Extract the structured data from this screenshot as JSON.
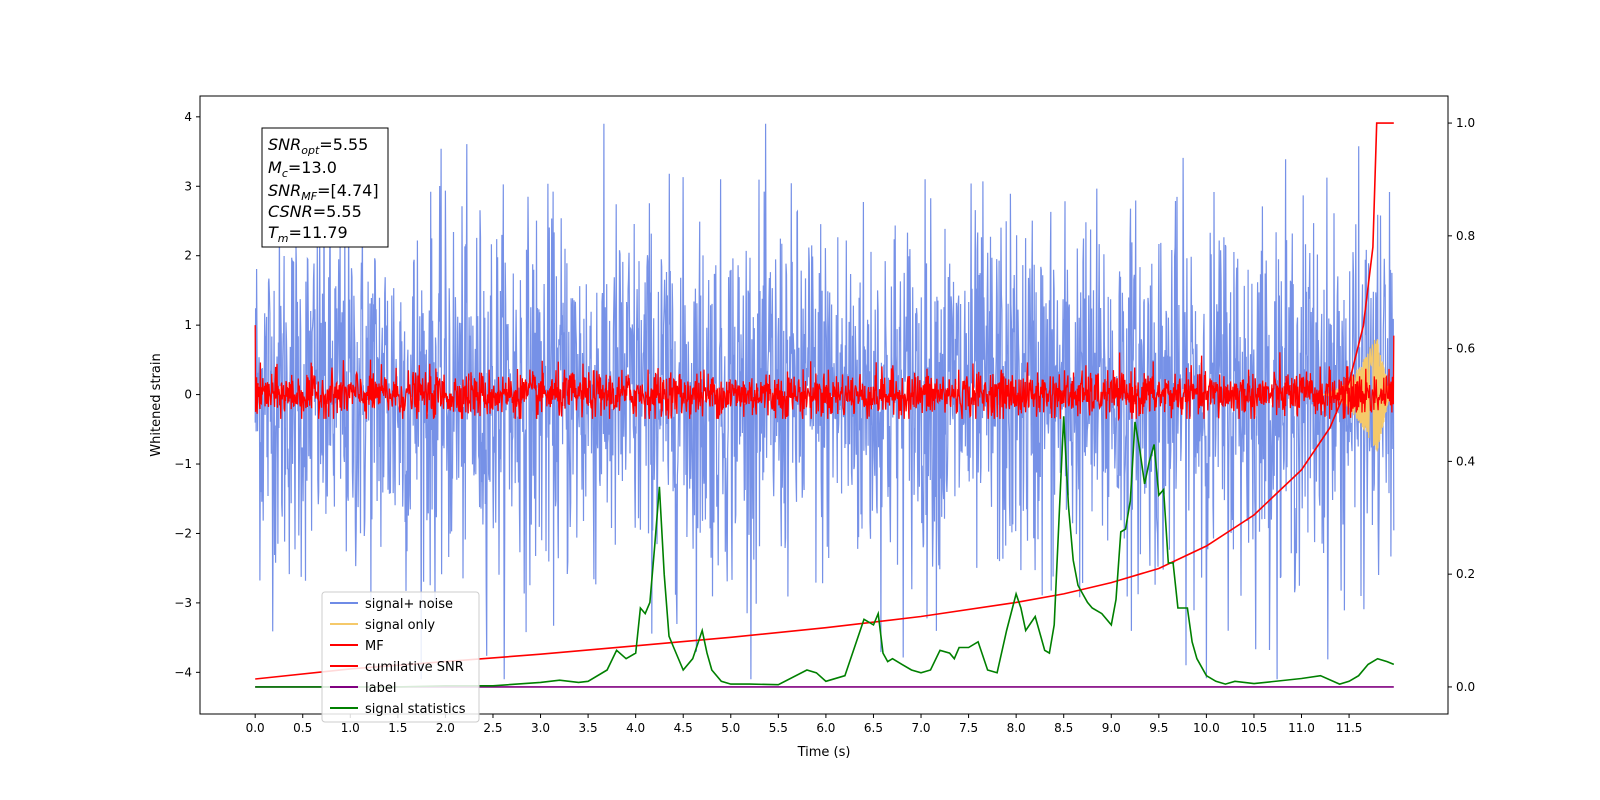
{
  "chart_data": {
    "type": "line",
    "xlabel": "Time (s)",
    "ylabel": "Whitened strain",
    "x_ticks": [
      "0.0",
      "0.5",
      "1.0",
      "1.5",
      "2.0",
      "2.5",
      "3.0",
      "3.5",
      "4.0",
      "4.5",
      "5.0",
      "5.5",
      "6.0",
      "6.5",
      "7.0",
      "7.5",
      "8.0",
      "8.5",
      "9.0",
      "9.5",
      "10.0",
      "10.5",
      "11.0",
      "11.5"
    ],
    "xlim": [
      -0.58,
      12.54
    ],
    "ylim_left": [
      -4.6,
      4.3
    ],
    "ylim_right": [
      -0.048,
      1.048
    ],
    "y_ticks_left": [
      -4,
      -3,
      -2,
      -1,
      0,
      1,
      2,
      3,
      4
    ],
    "y_ticks_left_labels": [
      "−4",
      "−3",
      "−2",
      "−1",
      "0",
      "1",
      "2",
      "3",
      "4"
    ],
    "y_ticks_right": [
      0.0,
      0.2,
      0.4,
      0.6,
      0.8,
      1.0
    ],
    "y_ticks_right_labels": [
      "0.0",
      "0.2",
      "0.4",
      "0.6",
      "0.8",
      "1.0"
    ],
    "annotation": {
      "line1": {
        "sym": "SNR",
        "sub": "opt",
        "val": "=5.55"
      },
      "line2": {
        "sym": "M",
        "sub": "c",
        "val": "=13.0"
      },
      "line3": {
        "sym": "SNR",
        "sub": "MF",
        "val": "=[4.74]"
      },
      "line4": {
        "sym": "CSNR",
        "sub": "",
        "val": "=5.55"
      },
      "line5": {
        "sym": "T",
        "sub": "m",
        "val": "=11.79"
      }
    },
    "legend": {
      "placement": "lower-left",
      "entries": [
        {
          "label": "signal+ noise",
          "color": "#6f8be6"
        },
        {
          "label": "signal only",
          "color": "#f5c96a"
        },
        {
          "label": "MF",
          "color": "#ff0000"
        },
        {
          "label": "cumilative SNR",
          "color": "#ff0000"
        },
        {
          "label": "label",
          "color": "#800080"
        },
        {
          "label": "signal statistics",
          "color": "#008000"
        }
      ]
    },
    "series": [
      {
        "name": "signal+ noise",
        "axis": "left",
        "color": "#6f8be6",
        "description_range": [
          -4.1,
          3.9
        ]
      },
      {
        "name": "signal only",
        "axis": "left",
        "color": "#f5c96a"
      },
      {
        "name": "MF",
        "axis": "left",
        "color": "#ff0000",
        "description_range": [
          -0.35,
          0.9
        ]
      },
      {
        "name": "cumilative SNR",
        "axis": "right",
        "x": [
          0.0,
          1.0,
          2.0,
          3.0,
          4.0,
          5.0,
          6.0,
          7.0,
          8.0,
          8.5,
          9.0,
          9.5,
          10.0,
          10.5,
          11.0,
          11.3,
          11.5,
          11.65,
          11.75,
          11.79,
          11.97
        ],
        "y": [
          0.014,
          0.032,
          0.045,
          0.058,
          0.073,
          0.088,
          0.105,
          0.125,
          0.15,
          0.165,
          0.185,
          0.21,
          0.25,
          0.305,
          0.385,
          0.46,
          0.54,
          0.64,
          0.78,
          1.0,
          1.0
        ]
      },
      {
        "name": "label",
        "axis": "right",
        "color": "#800080",
        "x": [
          0.0,
          11.97
        ],
        "y": [
          0.0,
          0.0
        ]
      },
      {
        "name": "signal statistics",
        "axis": "right",
        "color": "#008000",
        "x": [
          0.0,
          0.5,
          1.0,
          1.5,
          2.0,
          2.5,
          3.0,
          3.2,
          3.4,
          3.5,
          3.7,
          3.8,
          3.9,
          4.0,
          4.05,
          4.1,
          4.15,
          4.2,
          4.25,
          4.3,
          4.35,
          4.4,
          4.5,
          4.6,
          4.7,
          4.75,
          4.8,
          4.9,
          5.0,
          5.2,
          5.5,
          5.8,
          5.9,
          6.0,
          6.2,
          6.4,
          6.5,
          6.55,
          6.6,
          6.65,
          6.7,
          6.8,
          6.9,
          7.0,
          7.1,
          7.2,
          7.3,
          7.35,
          7.4,
          7.5,
          7.6,
          7.7,
          7.8,
          7.9,
          8.0,
          8.05,
          8.1,
          8.2,
          8.3,
          8.35,
          8.4,
          8.5,
          8.55,
          8.6,
          8.65,
          8.7,
          8.75,
          8.8,
          8.9,
          9.0,
          9.05,
          9.1,
          9.15,
          9.2,
          9.25,
          9.3,
          9.35,
          9.4,
          9.45,
          9.5,
          9.55,
          9.6,
          9.65,
          9.7,
          9.75,
          9.8,
          9.85,
          9.9,
          10.0,
          10.1,
          10.2,
          10.3,
          10.5,
          11.0,
          11.2,
          11.4,
          11.5,
          11.6,
          11.7,
          11.8,
          11.9,
          11.97
        ],
        "y": [
          0.0,
          0.0,
          0.0,
          0.0,
          0.002,
          0.002,
          0.008,
          0.012,
          0.008,
          0.01,
          0.03,
          0.065,
          0.05,
          0.06,
          0.14,
          0.13,
          0.15,
          0.25,
          0.355,
          0.2,
          0.09,
          0.07,
          0.03,
          0.05,
          0.1,
          0.06,
          0.03,
          0.01,
          0.005,
          0.005,
          0.004,
          0.03,
          0.025,
          0.01,
          0.02,
          0.12,
          0.11,
          0.13,
          0.06,
          0.045,
          0.05,
          0.04,
          0.03,
          0.025,
          0.03,
          0.065,
          0.06,
          0.05,
          0.07,
          0.07,
          0.08,
          0.03,
          0.025,
          0.1,
          0.165,
          0.14,
          0.1,
          0.125,
          0.065,
          0.06,
          0.11,
          0.48,
          0.32,
          0.225,
          0.18,
          0.165,
          0.15,
          0.14,
          0.13,
          0.11,
          0.155,
          0.275,
          0.28,
          0.33,
          0.47,
          0.42,
          0.36,
          0.4,
          0.43,
          0.34,
          0.35,
          0.22,
          0.22,
          0.14,
          0.14,
          0.14,
          0.08,
          0.05,
          0.02,
          0.01,
          0.005,
          0.01,
          0.006,
          0.015,
          0.02,
          0.005,
          0.01,
          0.02,
          0.04,
          0.05,
          0.045,
          0.04
        ]
      }
    ]
  }
}
